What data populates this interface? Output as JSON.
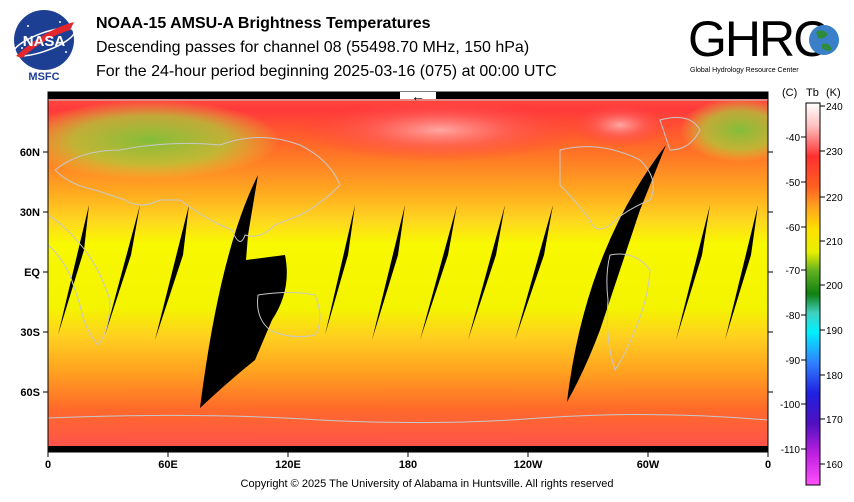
{
  "header": {
    "title": "NOAA-15 AMSU-A Brightness Temperatures",
    "subtitle": "Descending passes for channel 08 (55498.70 MHz, 150 hPa)",
    "period": "For the 24-hour period beginning 2025-03-16 (075) at 00:00 UTC"
  },
  "logos": {
    "nasa_text": "NASA",
    "nasa_sub": "MSFC",
    "ghrc_text": "GHRC",
    "ghrc_sub": "Global Hydrology Resource Center"
  },
  "map": {
    "lon_ticks": [
      "0",
      "60E",
      "120E",
      "180",
      "120W",
      "60W",
      "0"
    ],
    "lat_ticks": [
      "60N",
      "30N",
      "EQ",
      "30S",
      "60S"
    ],
    "arrow": "←",
    "colors": {
      "hot": "#ff2f2f",
      "warm": "#ffa500",
      "mid": "#ffff00",
      "cool": "#22a022",
      "gap": "#000000"
    }
  },
  "colorbar": {
    "c_label": "(C)",
    "tb_label": "Tb",
    "k_label": "(K)",
    "celsius_ticks": [
      "-40",
      "-50",
      "-60",
      "-70",
      "-80",
      "-90",
      "-100",
      "-110"
    ],
    "kelvin_ticks": [
      "240",
      "230",
      "220",
      "210",
      "200",
      "190",
      "180",
      "170",
      "160"
    ]
  },
  "footer": {
    "copyright": "Copyright © 2025 The University of Alabama in Huntsville.  All rights reserved"
  }
}
